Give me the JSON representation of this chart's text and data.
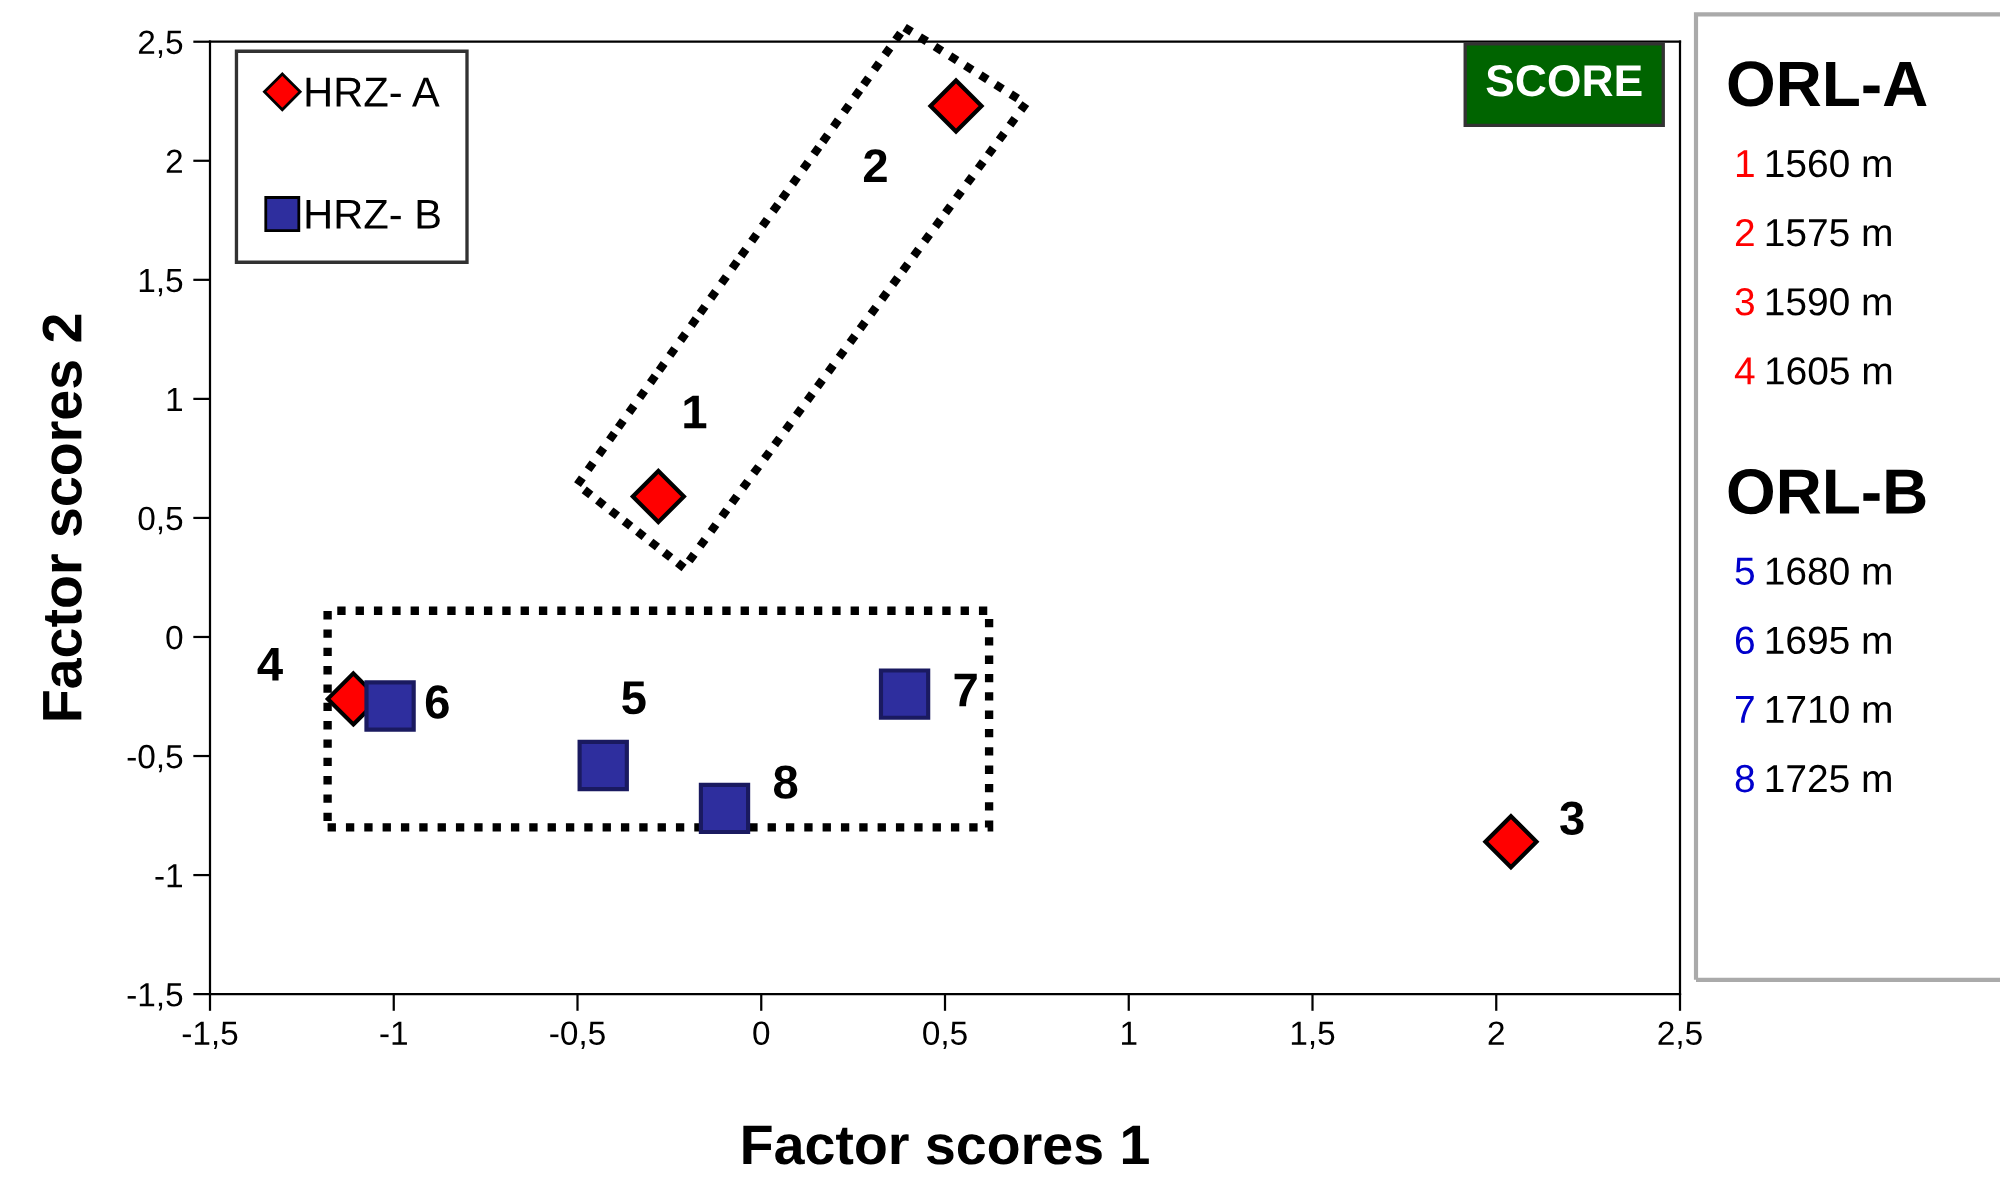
{
  "chart_data": {
    "type": "scatter",
    "xlabel": "Factor scores 1",
    "ylabel": "Factor scores 2",
    "xlim": [
      -1.5,
      2.5
    ],
    "ylim": [
      -1.5,
      2.5
    ],
    "xticks": [
      {
        "value": -1.5,
        "label": "-1,5"
      },
      {
        "value": -1,
        "label": "-1"
      },
      {
        "value": -0.5,
        "label": "-0,5"
      },
      {
        "value": 0,
        "label": "0"
      },
      {
        "value": 0.5,
        "label": "0,5"
      },
      {
        "value": 1,
        "label": "1"
      },
      {
        "value": 1.5,
        "label": "1,5"
      },
      {
        "value": 2,
        "label": "2"
      },
      {
        "value": 2.5,
        "label": "2,5"
      }
    ],
    "yticks": [
      {
        "value": -1.5,
        "label": "-1,5"
      },
      {
        "value": -1,
        "label": "-1"
      },
      {
        "value": -0.5,
        "label": "-0,5"
      },
      {
        "value": 0,
        "label": "0"
      },
      {
        "value": 0.5,
        "label": "0,5"
      },
      {
        "value": 1,
        "label": "1"
      },
      {
        "value": 1.5,
        "label": "1,5"
      },
      {
        "value": 2,
        "label": "2"
      },
      {
        "value": 2.5,
        "label": "2,5"
      }
    ],
    "series": [
      {
        "name": "HRZ- A",
        "color": "#ff0000",
        "marker": "diamond",
        "x": [
          -0.28,
          0.53,
          2.04,
          -1.11
        ],
        "values": [
          0.59,
          2.23,
          -0.86,
          -0.26
        ]
      },
      {
        "name": "HRZ- B",
        "color": "#2e2e9e",
        "marker": "square",
        "x": [
          -0.43,
          -1.01,
          0.39,
          -0.1
        ],
        "values": [
          -0.54,
          -0.29,
          -0.24,
          -0.72
        ]
      }
    ],
    "annotations": [
      {
        "text": "1",
        "x": -0.28,
        "y": 0.59
      },
      {
        "text": "2",
        "x": 0.53,
        "y": 2.23
      },
      {
        "text": "3",
        "x": 2.04,
        "y": -0.86
      },
      {
        "text": "4",
        "x": -1.11,
        "y": -0.26
      },
      {
        "text": "5",
        "x": -0.43,
        "y": -0.54
      },
      {
        "text": "6",
        "x": -1.01,
        "y": -0.29
      },
      {
        "text": "7",
        "x": 0.39,
        "y": -0.24
      },
      {
        "text": "8",
        "x": -0.1,
        "y": -0.72
      },
      "SCORE",
      "ORL-A",
      "1 1560 m",
      "2 1575 m",
      "3 1590 m",
      "4 1605 m",
      "ORL-B",
      "5 1680 m",
      "6 1695 m",
      "7 1710 m",
      "8 1725 m"
    ],
    "legend": "top left",
    "grid": false
  }
}
